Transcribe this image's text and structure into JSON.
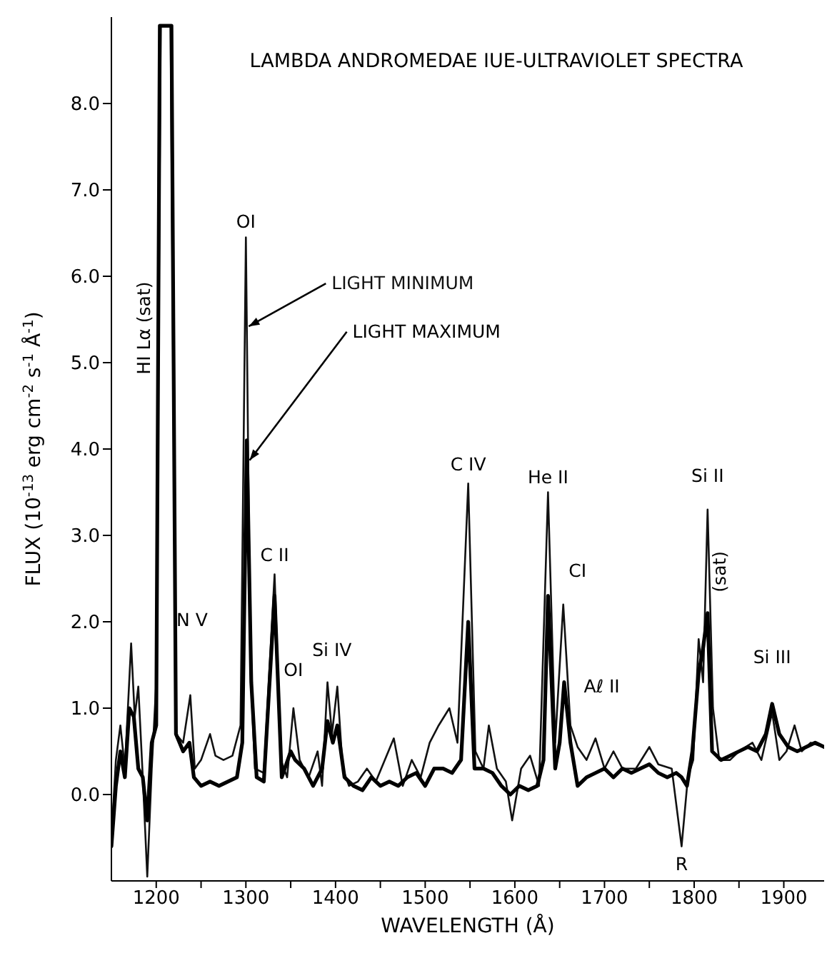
{
  "chart_data": {
    "type": "line",
    "title": "LAMBDA ANDROMEDAE IUE-ULTRAVIOLET SPECTRA",
    "xlabel": "WAVELENGTH (Å)",
    "ylabel": "FLUX (10$^{-13}$ erg cm$^{-2}$ s$^{-1}$ Å$^{-1}$)",
    "xlim": [
      1150,
      1945
    ],
    "ylim": [
      -1,
      9
    ],
    "xticks": [
      1200,
      {
        "value": 1250,
        "label": null
      },
      1300,
      {
        "value": 1350,
        "label": null
      },
      1400,
      {
        "value": 1450,
        "label": null
      },
      1500,
      {
        "value": 1550,
        "label": null
      },
      1600,
      {
        "value": 1650,
        "label": null
      },
      1700,
      {
        "value": 1750,
        "label": null
      },
      1800,
      {
        "value": 1850,
        "label": null
      },
      1900
    ],
    "yticks": [
      {
        "value": 0,
        "label": "0.0"
      },
      {
        "value": 1,
        "label": "1.0"
      },
      {
        "value": 2,
        "label": "2.0"
      },
      {
        "value": 3,
        "label": "3.0"
      },
      {
        "value": 4,
        "label": "4.0"
      },
      {
        "value": 5,
        "label": "5.0"
      },
      {
        "value": 6,
        "label": "6.0"
      },
      {
        "value": 7,
        "label": "7.0"
      },
      {
        "value": 8,
        "label": "8.0"
      }
    ],
    "legend": false,
    "grid": false,
    "marker": "none",
    "line_style": "solid",
    "series": [
      {
        "name": "LIGHT MINIMUM",
        "color": "#111111",
        "x": [
          1150,
          1155,
          1160,
          1165,
          1172,
          1176,
          1180,
          1185,
          1190,
          1195,
          1200,
          1205,
          1216,
          1222,
          1230,
          1238,
          1243,
          1250,
          1260,
          1266,
          1275,
          1285,
          1294,
          1300,
          1305,
          1310,
          1320,
          1332,
          1339,
          1346,
          1353,
          1360,
          1370,
          1380,
          1385,
          1391,
          1396,
          1402,
          1408,
          1415,
          1425,
          1435,
          1445,
          1455,
          1465,
          1475,
          1485,
          1495,
          1505,
          1515,
          1527,
          1536,
          1548,
          1556,
          1565,
          1571,
          1580,
          1590,
          1597,
          1607,
          1617,
          1627,
          1637,
          1645,
          1654,
          1662,
          1670,
          1680,
          1690,
          1700,
          1710,
          1720,
          1735,
          1750,
          1760,
          1775,
          1786,
          1793,
          1799,
          1805,
          1810,
          1815,
          1821,
          1828,
          1840,
          1850,
          1865,
          1875,
          1887,
          1895,
          1903,
          1912,
          1920,
          1930,
          1945
        ],
        "values": [
          -0.5,
          0.4,
          0.8,
          0.3,
          1.75,
          0.9,
          1.25,
          0.2,
          -0.95,
          0.3,
          1.3,
          8.9,
          8.9,
          0.7,
          0.6,
          1.15,
          0.3,
          0.4,
          0.7,
          0.45,
          0.4,
          0.45,
          0.8,
          6.45,
          1.5,
          0.3,
          0.25,
          2.55,
          0.4,
          0.2,
          1.0,
          0.4,
          0.2,
          0.5,
          0.1,
          1.3,
          0.7,
          1.25,
          0.3,
          0.1,
          0.15,
          0.3,
          0.15,
          0.4,
          0.65,
          0.1,
          0.4,
          0.2,
          0.6,
          0.8,
          1.0,
          0.6,
          3.6,
          0.5,
          0.3,
          0.8,
          0.3,
          0.15,
          -0.3,
          0.3,
          0.45,
          0.1,
          3.5,
          0.6,
          2.2,
          0.8,
          0.55,
          0.4,
          0.65,
          0.3,
          0.5,
          0.3,
          0.3,
          0.55,
          0.35,
          0.3,
          -0.6,
          0.2,
          0.4,
          1.8,
          1.3,
          3.3,
          1.0,
          0.4,
          0.4,
          0.5,
          0.6,
          0.4,
          0.95,
          0.4,
          0.5,
          0.8,
          0.5,
          0.6,
          0.55
        ]
      },
      {
        "name": "LIGHT MAXIMUM",
        "color": "#000000",
        "x": [
          1150,
          1155,
          1160,
          1165,
          1170,
          1175,
          1180,
          1185,
          1190,
          1195,
          1200,
          1204,
          1217,
          1222,
          1230,
          1237,
          1242,
          1250,
          1260,
          1270,
          1280,
          1290,
          1296,
          1301,
          1306,
          1312,
          1320,
          1332,
          1340,
          1350,
          1355,
          1365,
          1375,
          1385,
          1391,
          1397,
          1402,
          1410,
          1420,
          1430,
          1440,
          1450,
          1460,
          1470,
          1480,
          1490,
          1500,
          1510,
          1520,
          1530,
          1540,
          1548,
          1555,
          1565,
          1575,
          1585,
          1595,
          1605,
          1615,
          1625,
          1632,
          1637,
          1645,
          1650,
          1655,
          1662,
          1670,
          1680,
          1690,
          1700,
          1710,
          1720,
          1730,
          1740,
          1750,
          1760,
          1770,
          1780,
          1786,
          1792,
          1798,
          1805,
          1810,
          1815,
          1820,
          1830,
          1840,
          1850,
          1860,
          1870,
          1880,
          1887,
          1895,
          1905,
          1915,
          1925,
          1935,
          1945
        ],
        "values": [
          -0.6,
          0.1,
          0.5,
          0.2,
          1.0,
          0.9,
          0.3,
          0.2,
          -0.3,
          0.6,
          0.8,
          8.9,
          8.9,
          0.7,
          0.5,
          0.6,
          0.2,
          0.1,
          0.15,
          0.1,
          0.15,
          0.2,
          0.6,
          4.1,
          1.3,
          0.2,
          0.15,
          2.3,
          0.2,
          0.5,
          0.4,
          0.3,
          0.1,
          0.3,
          0.85,
          0.6,
          0.8,
          0.2,
          0.1,
          0.05,
          0.2,
          0.1,
          0.15,
          0.1,
          0.2,
          0.25,
          0.1,
          0.3,
          0.3,
          0.25,
          0.4,
          2.0,
          0.3,
          0.3,
          0.25,
          0.1,
          0.0,
          0.1,
          0.05,
          0.1,
          0.4,
          2.3,
          0.3,
          0.6,
          1.3,
          0.6,
          0.1,
          0.2,
          0.25,
          0.3,
          0.2,
          0.3,
          0.25,
          0.3,
          0.35,
          0.25,
          0.2,
          0.25,
          0.2,
          0.1,
          0.5,
          1.4,
          1.7,
          2.1,
          0.5,
          0.4,
          0.45,
          0.5,
          0.55,
          0.5,
          0.7,
          1.05,
          0.7,
          0.55,
          0.5,
          0.55,
          0.6,
          0.55
        ]
      }
    ],
    "annotations": [
      "HI Lα (sat)",
      "OI",
      "N V",
      "C II",
      "OI",
      "Si IV",
      "C IV",
      "He II",
      "CI",
      "Aℓ II",
      "Si II",
      "(sat)",
      "Si III",
      "R"
    ]
  }
}
